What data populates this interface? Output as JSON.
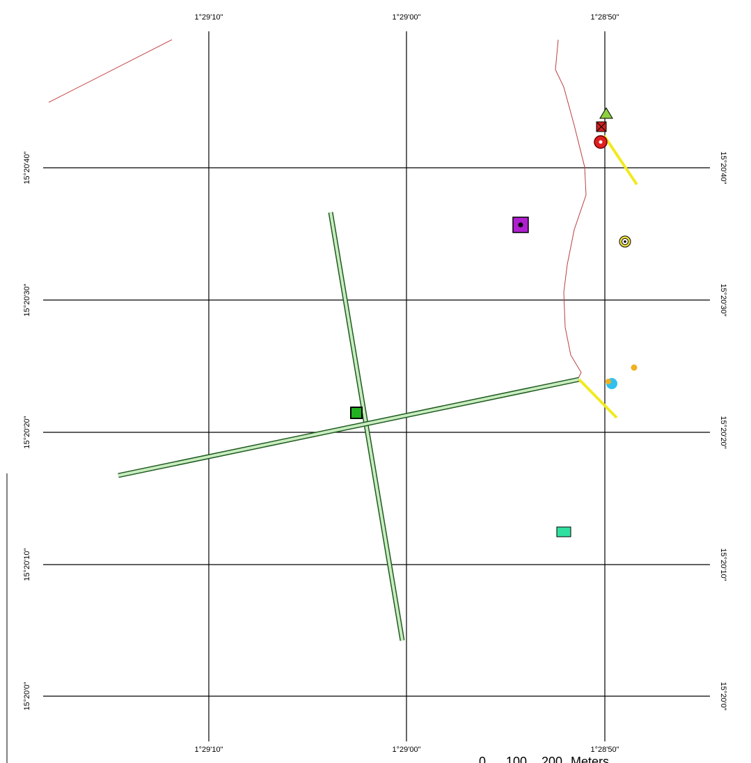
{
  "grid": {
    "longitudes": [
      "1°29'10\"",
      "1°29'00\"",
      "1°28'50\""
    ],
    "latitudes": [
      "15°20'40\"",
      "15°20'30\"",
      "15°20'20\"",
      "15°20'10\"",
      "15°20'0\""
    ]
  },
  "scale_bar": {
    "labels": [
      "0",
      "100",
      "200"
    ],
    "unit": "Meters"
  }
}
